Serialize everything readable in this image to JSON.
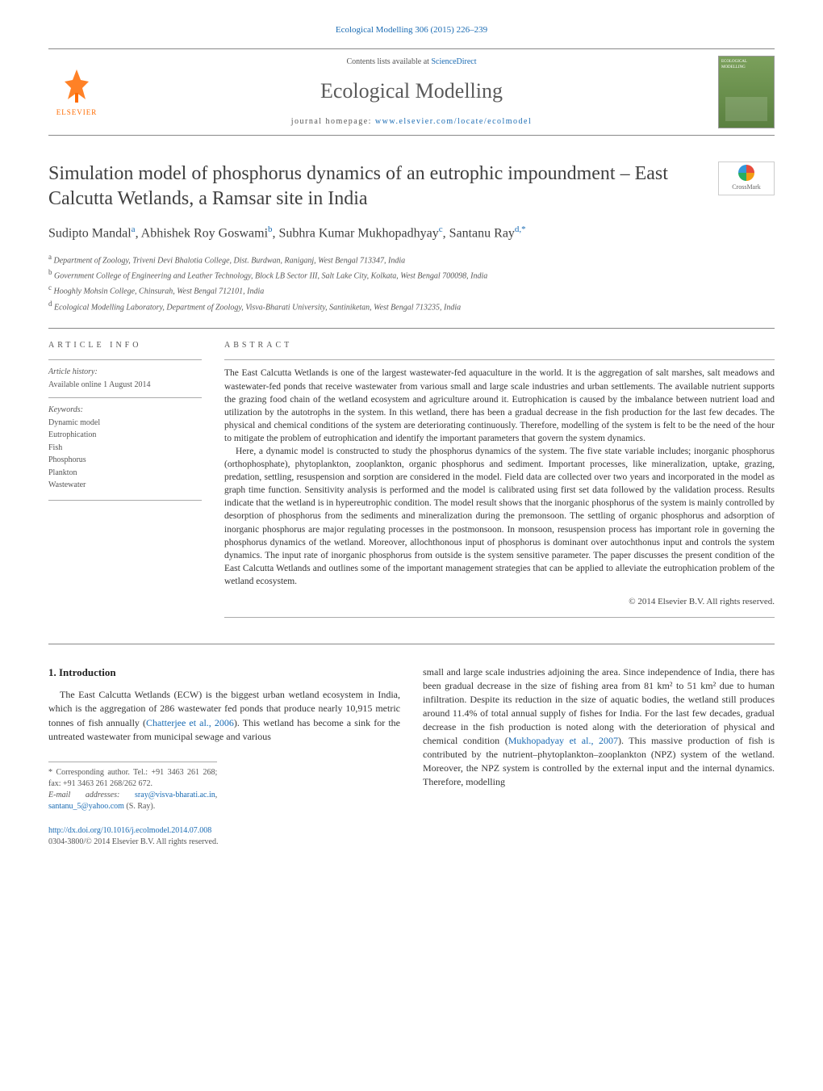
{
  "header": {
    "citation_line": "Ecological Modelling 306 (2015) 226–239",
    "contents_prefix": "Contents lists available at ",
    "contents_link": "ScienceDirect",
    "journal_title": "Ecological Modelling",
    "homepage_prefix": "journal homepage: ",
    "homepage_link": "www.elsevier.com/locate/ecolmodel",
    "publisher_name": "ELSEVIER",
    "cover_label": "ECOLOGICAL MODELLING"
  },
  "article": {
    "title": "Simulation model of phosphorus dynamics of an eutrophic impoundment – East Calcutta Wetlands, a Ramsar site in India",
    "crossmark_label": "CrossMark",
    "authors_html": "Sudipto Mandal<sup>a</sup>, Abhishek Roy Goswami<sup>b</sup>, Subhra Kumar Mukhopadhyay<sup>c</sup>, Santanu Ray<sup>d,*</sup>",
    "affiliations": [
      {
        "sup": "a",
        "text": "Department of Zoology, Triveni Devi Bhalotia College, Dist. Burdwan, Raniganj, West Bengal 713347, India"
      },
      {
        "sup": "b",
        "text": "Government College of Engineering and Leather Technology, Block LB Sector III, Salt Lake City, Kolkata, West Bengal 700098, India"
      },
      {
        "sup": "c",
        "text": "Hooghly Mohsin College, Chinsurah, West Bengal 712101, India"
      },
      {
        "sup": "d",
        "text": "Ecological Modelling Laboratory, Department of Zoology, Visva-Bharati University, Santiniketan, West Bengal 713235, India"
      }
    ]
  },
  "info": {
    "heading": "ARTICLE INFO",
    "history_heading": "Article history:",
    "history_line": "Available online 1 August 2014",
    "keywords_heading": "Keywords:",
    "keywords": [
      "Dynamic model",
      "Eutrophication",
      "Fish",
      "Phosphorus",
      "Plankton",
      "Wastewater"
    ]
  },
  "abstract": {
    "heading": "ABSTRACT",
    "p1": "The East Calcutta Wetlands is one of the largest wastewater-fed aquaculture in the world. It is the aggregation of salt marshes, salt meadows and wastewater-fed ponds that receive wastewater from various small and large scale industries and urban settlements. The available nutrient supports the grazing food chain of the wetland ecosystem and agriculture around it. Eutrophication is caused by the imbalance between nutrient load and utilization by the autotrophs in the system. In this wetland, there has been a gradual decrease in the fish production for the last few decades. The physical and chemical conditions of the system are deteriorating continuously. Therefore, modelling of the system is felt to be the need of the hour to mitigate the problem of eutrophication and identify the important parameters that govern the system dynamics.",
    "p2": "Here, a dynamic model is constructed to study the phosphorus dynamics of the system. The five state variable includes; inorganic phosphorus (orthophosphate), phytoplankton, zooplankton, organic phosphorus and sediment. Important processes, like mineralization, uptake, grazing, predation, settling, resuspension and sorption are considered in the model. Field data are collected over two years and incorporated in the model as graph time function. Sensitivity analysis is performed and the model is calibrated using first set data followed by the validation process. Results indicate that the wetland is in hypereutrophic condition. The model result shows that the inorganic phosphorus of the system is mainly controlled by desorption of phosphorus from the sediments and mineralization during the premonsoon. The settling of organic phosphorus and adsorption of inorganic phosphorus are major regulating processes in the postmonsoon. In monsoon, resuspension process has important role in governing the phosphorus dynamics of the wetland. Moreover, allochthonous input of phosphorus is dominant over autochthonus input and controls the system dynamics. The input rate of inorganic phosphorus from outside is the system sensitive parameter. The paper discusses the present condition of the East Calcutta Wetlands and outlines some of the important management strategies that can be applied to alleviate the eutrophication problem of the wetland ecosystem.",
    "copyright": "© 2014 Elsevier B.V. All rights reserved."
  },
  "body": {
    "section_heading": "1. Introduction",
    "col1_p1_pre": "The East Calcutta Wetlands (ECW) is the biggest urban wetland ecosystem in India, which is the aggregation of 286 wastewater fed ponds that produce nearly 10,915 metric tonnes of fish annually (",
    "col1_cite": "Chatterjee et al., 2006",
    "col1_p1_post": "). This wetland has become a sink for the untreated wastewater from municipal sewage and various",
    "col2_pre": "small and large scale industries adjoining the area. Since independence of India, there has been gradual decrease in the size of fishing area from 81 km² to 51 km² due to human infiltration. Despite its reduction in the size of aquatic bodies, the wetland still produces around 11.4% of total annual supply of fishes for India. For the last few decades, gradual decrease in the fish production is noted along with the deterioration of physical and chemical condition (",
    "col2_cite": "Mukhopadyay et al., 2007",
    "col2_post": "). This massive production of fish is contributed by the nutrient–phytoplankton–zooplankton (NPZ) system of the wetland. Moreover, the NPZ system is controlled by the external input and the internal dynamics. Therefore, modelling"
  },
  "footnotes": {
    "corr_label": "* Corresponding author. Tel.: +91 3463 261 268; fax: +91 3463 261 268/262 672.",
    "email_label": "E-mail addresses: ",
    "email1": "sray@visva-bharati.ac.in",
    "email_sep": ", ",
    "email2": "santanu_5@yahoo.com",
    "email_tail": " (S. Ray)."
  },
  "footer": {
    "doi": "http://dx.doi.org/10.1016/j.ecolmodel.2014.07.008",
    "issn_line": "0304-3800/© 2014 Elsevier B.V. All rights reserved."
  },
  "colors": {
    "link": "#1a6bb3",
    "accent_orange": "#ff6b00",
    "text": "#333333",
    "rule": "#888888"
  }
}
